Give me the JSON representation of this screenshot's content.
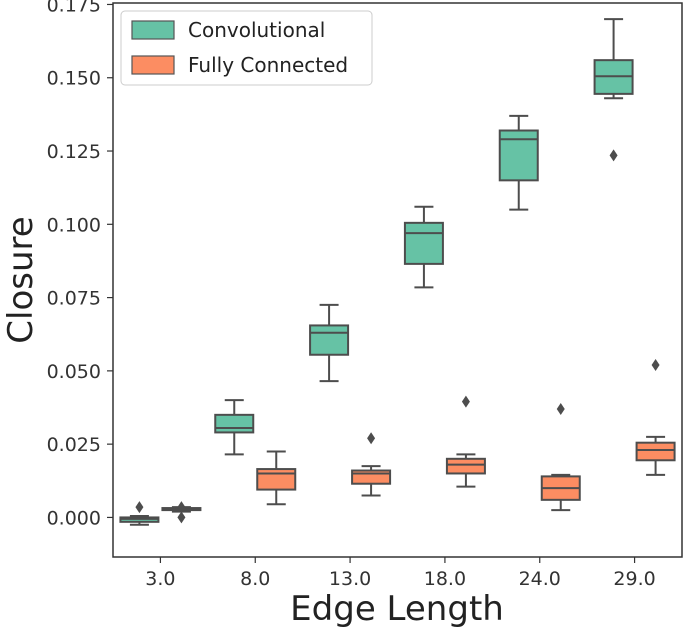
{
  "chart_data": {
    "type": "boxplot",
    "title": "",
    "xlabel": "Edge Length",
    "ylabel": "Closure",
    "ylim": [
      -0.0135,
      0.1755
    ],
    "yticks": [
      0.0,
      0.025,
      0.05,
      0.075,
      0.1,
      0.125,
      0.15,
      0.175
    ],
    "ytick_labels": [
      "0.000",
      "0.025",
      "0.050",
      "0.075",
      "0.100",
      "0.125",
      "0.150",
      "0.175"
    ],
    "categories": [
      "3.0",
      "8.0",
      "13.0",
      "18.0",
      "24.0",
      "29.0"
    ],
    "grid": false,
    "legend_position": "top-left",
    "series": [
      {
        "name": "Convolutional",
        "color": "#66c2a5",
        "boxes": [
          {
            "whislo": -0.0025,
            "q1": -0.0015,
            "med": -0.0005,
            "q3": 0.0,
            "whishi": 0.0005,
            "fliers": [
              0.0035
            ]
          },
          {
            "whislo": 0.0215,
            "q1": 0.029,
            "med": 0.0305,
            "q3": 0.035,
            "whishi": 0.04,
            "fliers": []
          },
          {
            "whislo": 0.0465,
            "q1": 0.0555,
            "med": 0.063,
            "q3": 0.0655,
            "whishi": 0.0725,
            "fliers": []
          },
          {
            "whislo": 0.0785,
            "q1": 0.0865,
            "med": 0.097,
            "q3": 0.1005,
            "whishi": 0.106,
            "fliers": []
          },
          {
            "whislo": 0.105,
            "q1": 0.115,
            "med": 0.129,
            "q3": 0.132,
            "whishi": 0.137,
            "fliers": []
          },
          {
            "whislo": 0.143,
            "q1": 0.1445,
            "med": 0.1505,
            "q3": 0.156,
            "whishi": 0.17,
            "fliers": [
              0.1235
            ]
          }
        ]
      },
      {
        "name": "Fully Connected",
        "color": "#fc8d62",
        "boxes": [
          {
            "whislo": 0.002,
            "q1": 0.0025,
            "med": 0.0028,
            "q3": 0.0032,
            "whishi": 0.0035,
            "fliers": [
              0.0,
              0.0035
            ]
          },
          {
            "whislo": 0.0045,
            "q1": 0.0095,
            "med": 0.015,
            "q3": 0.0165,
            "whishi": 0.0225,
            "fliers": []
          },
          {
            "whislo": 0.0075,
            "q1": 0.0115,
            "med": 0.015,
            "q3": 0.016,
            "whishi": 0.0175,
            "fliers": [
              0.027
            ]
          },
          {
            "whislo": 0.0105,
            "q1": 0.015,
            "med": 0.018,
            "q3": 0.02,
            "whishi": 0.0215,
            "fliers": [
              0.0395
            ]
          },
          {
            "whislo": 0.0025,
            "q1": 0.006,
            "med": 0.01,
            "q3": 0.014,
            "whishi": 0.0145,
            "fliers": [
              0.037
            ]
          },
          {
            "whislo": 0.0145,
            "q1": 0.0195,
            "med": 0.023,
            "q3": 0.0255,
            "whishi": 0.0275,
            "fliers": [
              0.052
            ]
          }
        ]
      }
    ]
  }
}
